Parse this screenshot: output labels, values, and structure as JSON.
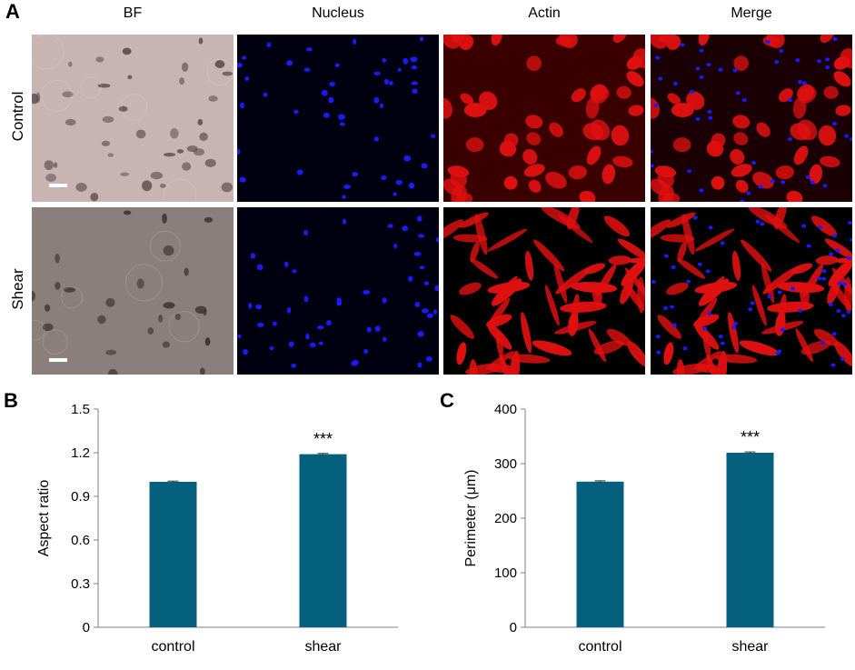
{
  "figure": {
    "panel_a": {
      "letter": "A",
      "columns": [
        "BF",
        "Nucleus",
        "Actin",
        "Merge"
      ],
      "rows": [
        "Control",
        "Shear"
      ],
      "colors": {
        "nucleus": "#1a1aff",
        "actin": "#e01010",
        "bf_control_bg": "#c9b4b4",
        "bf_shear_bg": "#8a7f7a"
      }
    },
    "panel_b": {
      "letter": "B"
    },
    "panel_c": {
      "letter": "C"
    }
  },
  "chart_data": [
    {
      "type": "bar",
      "categories": [
        "control",
        "shear"
      ],
      "values": [
        1.0,
        1.19
      ],
      "errors": [
        0.005,
        0.005
      ],
      "annotations": [
        "",
        "***"
      ],
      "ylabel": "Aspect ratio",
      "ylim": [
        0,
        1.5
      ],
      "yticks": [
        "0",
        "0.3",
        "0.6",
        "0.9",
        "1.2",
        "1.5"
      ],
      "ytick_values": [
        0,
        0.3,
        0.6,
        0.9,
        1.2,
        1.5
      ],
      "bar_color": "#05607e",
      "grid": false
    },
    {
      "type": "bar",
      "categories": [
        "control",
        "shear"
      ],
      "values": [
        267,
        320
      ],
      "errors": [
        1.5,
        1.5
      ],
      "annotations": [
        "",
        "***"
      ],
      "ylabel": "Perimeter (μm)",
      "ylim": [
        0,
        400
      ],
      "yticks": [
        "0",
        "100",
        "200",
        "300",
        "400"
      ],
      "ytick_values": [
        0,
        100,
        200,
        300,
        400
      ],
      "bar_color": "#05607e",
      "grid": false
    }
  ]
}
